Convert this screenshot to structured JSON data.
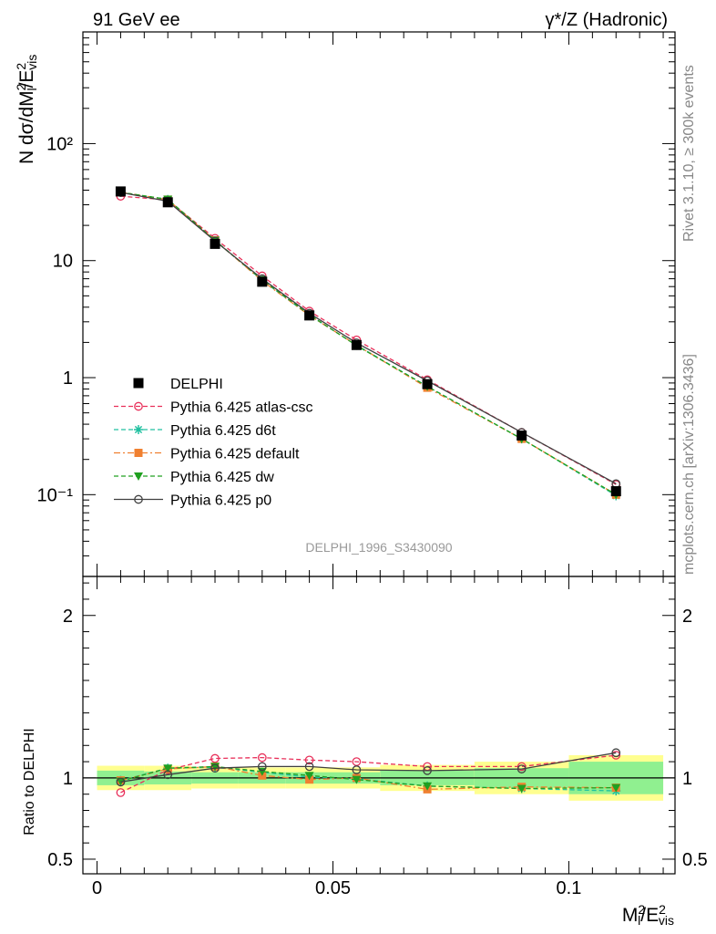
{
  "header": {
    "left_title": "91 GeV ee",
    "right_title": "γ*/Z (Hadronic)"
  },
  "side_labels": {
    "rivet": "Rivet 3.1.10, ≥ 300k events",
    "mcplots": "mcplots.cern.ch [arXiv:1306.3436]"
  },
  "analysis_id": "DELPHI_1996_S3430090",
  "colors": {
    "data": "#000000",
    "atlas_csc": "#e8305a",
    "d6t": "#20c0a0",
    "default": "#f08030",
    "dw": "#20a020",
    "p0": "#404040",
    "band_inner": "#90f090",
    "band_outer": "#ffff90"
  },
  "chart_data": [
    {
      "type": "scatter",
      "panel": "main",
      "ylabel": "N dσ/dM²/E²vis",
      "yscale": "log",
      "ylim": [
        0.02,
        900
      ],
      "xlim": [
        -0.003,
        0.1225
      ],
      "ytick_labels": [
        "10⁻¹",
        "1",
        "10",
        "10²"
      ],
      "x": [
        0.005,
        0.015,
        0.025,
        0.035,
        0.045,
        0.055,
        0.07,
        0.09,
        0.11
      ],
      "series": [
        {
          "name": "DELPHI",
          "key": "data",
          "style": "square",
          "values": [
            39.0,
            31.5,
            13.9,
            6.6,
            3.4,
            1.9,
            0.88,
            0.32,
            0.107
          ]
        },
        {
          "name": "Pythia 6.425 atlas-csc",
          "key": "atlas_csc",
          "style": "open-circle",
          "values": [
            35.5,
            33.0,
            15.5,
            7.4,
            3.7,
            2.1,
            0.96,
            0.34,
            0.122
          ]
        },
        {
          "name": "Pythia 6.425 d6t",
          "key": "d6t",
          "style": "star",
          "values": [
            38.4,
            33.3,
            14.8,
            6.8,
            3.4,
            1.9,
            0.84,
            0.3,
            0.098
          ]
        },
        {
          "name": "Pythia 6.425 default",
          "key": "default",
          "style": "filled-square",
          "values": [
            38.5,
            33.2,
            14.9,
            6.7,
            3.4,
            1.9,
            0.82,
            0.3,
            0.1
          ]
        },
        {
          "name": "Pythia 6.425 dw",
          "key": "dw",
          "style": "triangle-down",
          "values": [
            38.3,
            33.4,
            14.9,
            6.85,
            3.45,
            1.88,
            0.84,
            0.3,
            0.1
          ]
        },
        {
          "name": "Pythia 6.425 p0",
          "key": "p0",
          "style": "open-circle-line",
          "values": [
            38.2,
            32.2,
            14.7,
            7.0,
            3.55,
            1.98,
            0.94,
            0.34,
            0.124
          ]
        }
      ]
    },
    {
      "type": "line",
      "panel": "ratio",
      "ylabel": "Ratio to DELPHI",
      "xlabel": "M²l/E²vis",
      "ylim": [
        0.41,
        2.24
      ],
      "yticks": [
        0.5,
        1,
        2
      ],
      "ytick_labels": [
        "0.5",
        "1",
        "2"
      ],
      "xticks": [
        0,
        0.05,
        0.1
      ],
      "xtick_labels": [
        "0",
        "0.05",
        "0.1"
      ],
      "x": [
        0.005,
        0.015,
        0.025,
        0.035,
        0.045,
        0.055,
        0.07,
        0.09,
        0.11
      ],
      "bins": [
        [
          0,
          0.01
        ],
        [
          0.01,
          0.02
        ],
        [
          0.02,
          0.03
        ],
        [
          0.03,
          0.04
        ],
        [
          0.04,
          0.05
        ],
        [
          0.05,
          0.06
        ],
        [
          0.06,
          0.08
        ],
        [
          0.08,
          0.1
        ],
        [
          0.1,
          0.12
        ]
      ],
      "band_inner": [
        0.045,
        0.04,
        0.035,
        0.035,
        0.035,
        0.035,
        0.045,
        0.06,
        0.1
      ],
      "band_outer": [
        0.075,
        0.075,
        0.065,
        0.065,
        0.065,
        0.065,
        0.08,
        0.1,
        0.14
      ],
      "series": [
        {
          "name": "Pythia 6.425 atlas-csc",
          "key": "atlas_csc",
          "style": "open-circle",
          "values": [
            0.91,
            1.05,
            1.12,
            1.125,
            1.11,
            1.1,
            1.07,
            1.07,
            1.14
          ]
        },
        {
          "name": "Pythia 6.425 d6t",
          "key": "d6t",
          "style": "star",
          "values": [
            0.985,
            1.06,
            1.065,
            1.035,
            1.005,
            0.995,
            0.95,
            0.935,
            0.92
          ]
        },
        {
          "name": "Pythia 6.425 default",
          "key": "default",
          "style": "filled-square",
          "values": [
            0.985,
            1.055,
            1.07,
            1.015,
            0.99,
            1.0,
            0.93,
            0.945,
            0.94
          ]
        },
        {
          "name": "Pythia 6.425 dw",
          "key": "dw",
          "style": "triangle-down",
          "values": [
            0.98,
            1.06,
            1.07,
            1.04,
            1.015,
            0.99,
            0.95,
            0.935,
            0.94
          ]
        },
        {
          "name": "Pythia 6.425 p0",
          "key": "p0",
          "style": "open-circle-line",
          "values": [
            0.975,
            1.02,
            1.06,
            1.07,
            1.07,
            1.05,
            1.045,
            1.055,
            1.155
          ]
        }
      ]
    }
  ]
}
